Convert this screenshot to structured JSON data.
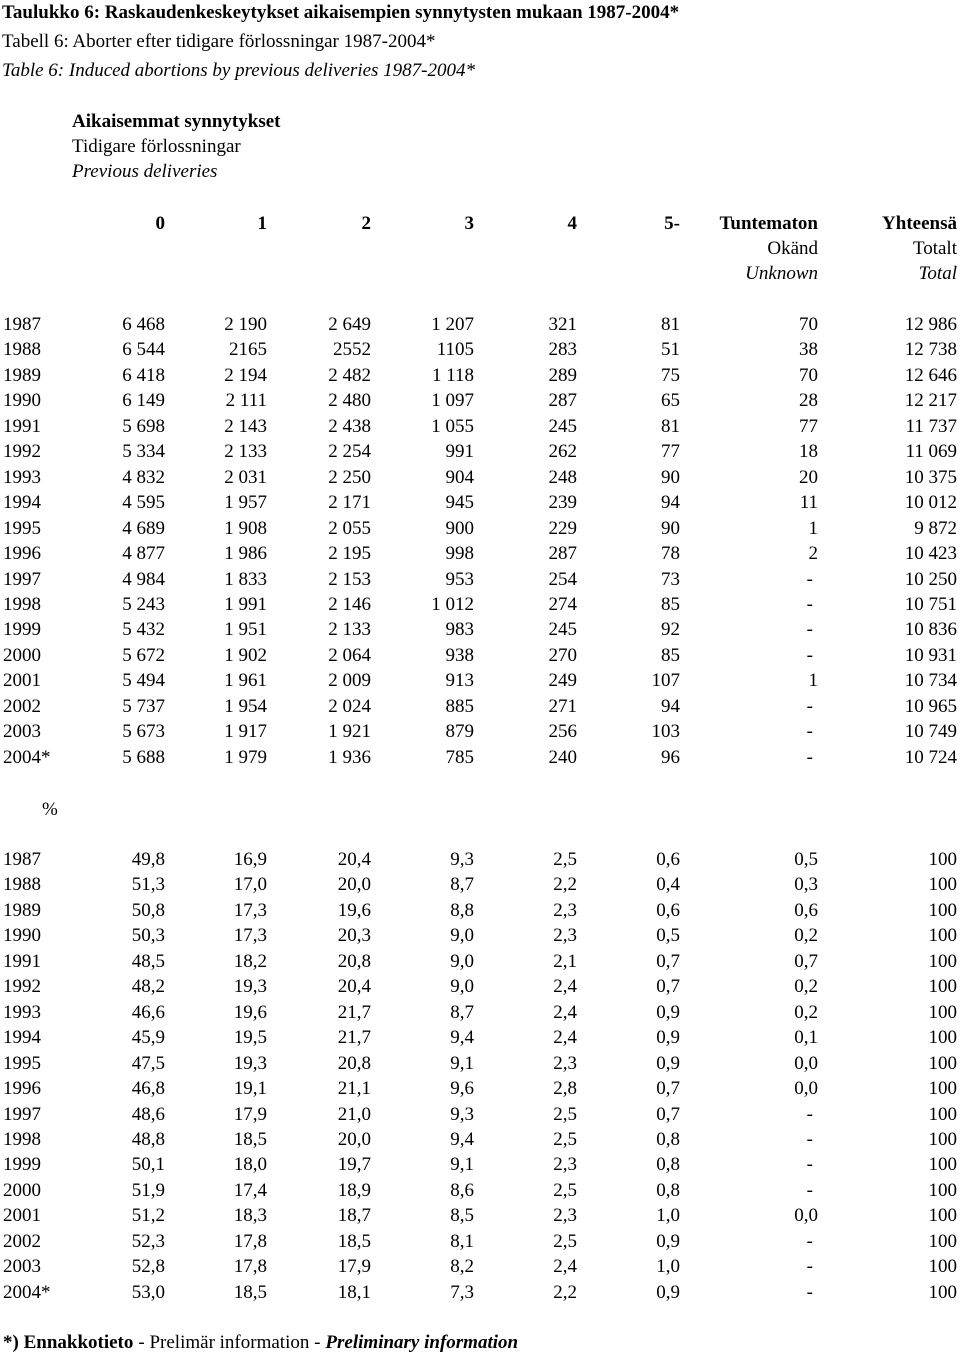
{
  "title": [
    "Taulukko 6: Raskaudenkeskeytykset aikaisempien synnytysten mukaan 1987-2004*",
    "Tabell 6: Aborter efter tidigare förlossningar 1987-2004*",
    "Table 6: Induced abortions by previous deliveries 1987-2004*"
  ],
  "group_header": [
    "Aikaisemmat synnytykset",
    "Tidigare förlossningar",
    "Previous deliveries"
  ],
  "columns": [
    [
      "0"
    ],
    [
      "1"
    ],
    [
      "2"
    ],
    [
      "3"
    ],
    [
      "4"
    ],
    [
      "5-"
    ],
    [
      "Tuntematon",
      "Okänd",
      "Unknown"
    ],
    [
      "Yhteensä",
      "Totalt",
      "Total"
    ]
  ],
  "counts": {
    "rows": [
      [
        "1987",
        "6 468",
        "2 190",
        "2 649",
        "1 207",
        "321",
        "81",
        "70",
        "12 986"
      ],
      [
        "1988",
        "6 544",
        "2165",
        "2552",
        "1105",
        "283",
        "51",
        "38",
        "12 738"
      ],
      [
        "1989",
        "6 418",
        "2 194",
        "2 482",
        "1 118",
        "289",
        "75",
        "70",
        "12 646"
      ],
      [
        "1990",
        "6 149",
        "2 111",
        "2 480",
        "1 097",
        "287",
        "65",
        "28",
        "12 217"
      ],
      [
        "1991",
        "5 698",
        "2 143",
        "2 438",
        "1 055",
        "245",
        "81",
        "77",
        "11 737"
      ],
      [
        "1992",
        "5 334",
        "2 133",
        "2 254",
        "991",
        "262",
        "77",
        "18",
        "11 069"
      ],
      [
        "1993",
        "4 832",
        "2 031",
        "2 250",
        "904",
        "248",
        "90",
        "20",
        "10 375"
      ],
      [
        "1994",
        "4 595",
        "1 957",
        "2 171",
        "945",
        "239",
        "94",
        "11",
        "10 012"
      ],
      [
        "1995",
        "4 689",
        "1 908",
        "2 055",
        "900",
        "229",
        "90",
        "1",
        "9 872"
      ],
      [
        "1996",
        "4 877",
        "1 986",
        "2 195",
        "998",
        "287",
        "78",
        "2",
        "10 423"
      ],
      [
        "1997",
        "4 984",
        "1 833",
        "2 153",
        "953",
        "254",
        "73",
        "-",
        "10 250"
      ],
      [
        "1998",
        "5 243",
        "1 991",
        "2 146",
        "1 012",
        "274",
        "85",
        "-",
        "10 751"
      ],
      [
        "1999",
        "5 432",
        "1 951",
        "2 133",
        "983",
        "245",
        "92",
        "-",
        "10 836"
      ],
      [
        "2000",
        "5 672",
        "1 902",
        "2 064",
        "938",
        "270",
        "85",
        "-",
        "10 931"
      ],
      [
        "2001",
        "5 494",
        "1 961",
        "2 009",
        "913",
        "249",
        "107",
        "1",
        "10 734"
      ],
      [
        "2002",
        "5 737",
        "1 954",
        "2 024",
        "885",
        "271",
        "94",
        "-",
        "10 965"
      ],
      [
        "2003",
        "5 673",
        "1 917",
        "1 921",
        "879",
        "256",
        "103",
        "-",
        "10 749"
      ],
      [
        "2004*",
        "5 688",
        "1 979",
        "1 936",
        "785",
        "240",
        "96",
        "-",
        "10 724"
      ]
    ]
  },
  "percent_label": "%",
  "percent": {
    "rows": [
      [
        "1987",
        "49,8",
        "16,9",
        "20,4",
        "9,3",
        "2,5",
        "0,6",
        "0,5",
        "100"
      ],
      [
        "1988",
        "51,3",
        "17,0",
        "20,0",
        "8,7",
        "2,2",
        "0,4",
        "0,3",
        "100"
      ],
      [
        "1989",
        "50,8",
        "17,3",
        "19,6",
        "8,8",
        "2,3",
        "0,6",
        "0,6",
        "100"
      ],
      [
        "1990",
        "50,3",
        "17,3",
        "20,3",
        "9,0",
        "2,3",
        "0,5",
        "0,2",
        "100"
      ],
      [
        "1991",
        "48,5",
        "18,2",
        "20,8",
        "9,0",
        "2,1",
        "0,7",
        "0,7",
        "100"
      ],
      [
        "1992",
        "48,2",
        "19,3",
        "20,4",
        "9,0",
        "2,4",
        "0,7",
        "0,2",
        "100"
      ],
      [
        "1993",
        "46,6",
        "19,6",
        "21,7",
        "8,7",
        "2,4",
        "0,9",
        "0,2",
        "100"
      ],
      [
        "1994",
        "45,9",
        "19,5",
        "21,7",
        "9,4",
        "2,4",
        "0,9",
        "0,1",
        "100"
      ],
      [
        "1995",
        "47,5",
        "19,3",
        "20,8",
        "9,1",
        "2,3",
        "0,9",
        "0,0",
        "100"
      ],
      [
        "1996",
        "46,8",
        "19,1",
        "21,1",
        "9,6",
        "2,8",
        "0,7",
        "0,0",
        "100"
      ],
      [
        "1997",
        "48,6",
        "17,9",
        "21,0",
        "9,3",
        "2,5",
        "0,7",
        "-",
        "100"
      ],
      [
        "1998",
        "48,8",
        "18,5",
        "20,0",
        "9,4",
        "2,5",
        "0,8",
        "-",
        "100"
      ],
      [
        "1999",
        "50,1",
        "18,0",
        "19,7",
        "9,1",
        "2,3",
        "0,8",
        "-",
        "100"
      ],
      [
        "2000",
        "51,9",
        "17,4",
        "18,9",
        "8,6",
        "2,5",
        "0,8",
        "-",
        "100"
      ],
      [
        "2001",
        "51,2",
        "18,3",
        "18,7",
        "8,5",
        "2,3",
        "1,0",
        "0,0",
        "100"
      ],
      [
        "2002",
        "52,3",
        "17,8",
        "18,5",
        "8,1",
        "2,5",
        "0,9",
        "-",
        "100"
      ],
      [
        "2003",
        "52,8",
        "17,8",
        "17,9",
        "8,2",
        "2,4",
        "1,0",
        "-",
        "100"
      ],
      [
        "2004*",
        "53,0",
        "18,5",
        "18,1",
        "7,3",
        "2,2",
        "0,9",
        "-",
        "100"
      ]
    ]
  },
  "footnote": [
    "*) Ennakkotieto",
    "- Prelimär information -",
    "Preliminary information"
  ]
}
